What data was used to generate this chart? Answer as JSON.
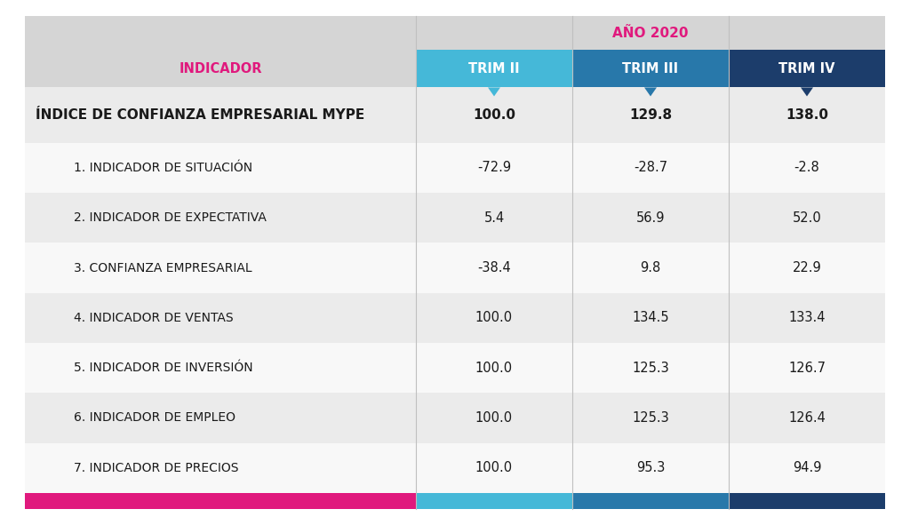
{
  "title": "AÑO 2020",
  "col_header": "INDICADOR",
  "columns": [
    "TRIM II",
    "TRIM III",
    "TRIM IV"
  ],
  "col_colors": [
    "#45B8D8",
    "#2878AA",
    "#1C3D6B"
  ],
  "main_row_label": "ÍNDICE DE CONFIANZA EMPRESARIAL MYPE",
  "main_row_values": [
    "100.0",
    "129.8",
    "138.0"
  ],
  "rows": [
    {
      "label": "1. INDICADOR DE SITUACIÓN",
      "values": [
        "-72.9",
        "-28.7",
        "-2.8"
      ]
    },
    {
      "label": "2. INDICADOR DE EXPECTATIVA",
      "values": [
        "5.4",
        "56.9",
        "52.0"
      ]
    },
    {
      "label": "3. CONFIANZA EMPRESARIAL",
      "values": [
        "-38.4",
        "9.8",
        "22.9"
      ]
    },
    {
      "label": "4. INDICADOR DE VENTAS",
      "values": [
        "100.0",
        "134.5",
        "133.4"
      ]
    },
    {
      "label": "5. INDICADOR DE INVERSIÓN",
      "values": [
        "100.0",
        "125.3",
        "126.7"
      ]
    },
    {
      "label": "6. INDICADOR DE EMPLEO",
      "values": [
        "100.0",
        "125.3",
        "126.4"
      ]
    },
    {
      "label": "7. INDICADOR DE PRECIOS",
      "values": [
        "100.0",
        "95.3",
        "94.9"
      ]
    }
  ],
  "bg_light": "#EBEBEB",
  "bg_white": "#F8F8F8",
  "header_bg": "#D5D5D5",
  "title_color": "#E0197D",
  "indicador_label_color": "#E0197D",
  "text_dark": "#1A1A1A",
  "footer_colors": [
    "#E0197D",
    "#45B8D8",
    "#2878AA",
    "#1C3D6B"
  ],
  "fig_bg": "#FFFFFF"
}
